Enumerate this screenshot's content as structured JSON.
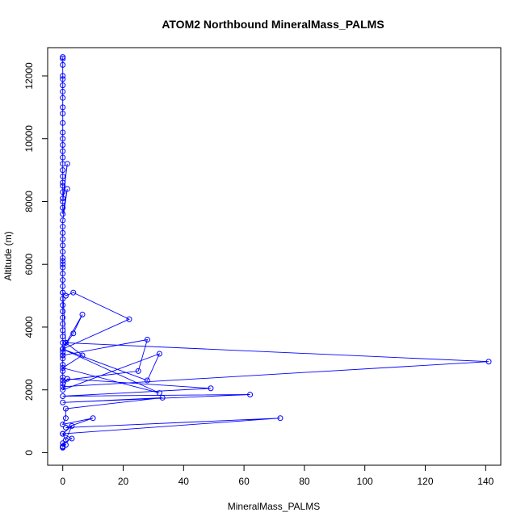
{
  "chart_data": {
    "type": "line",
    "title": "ATOM2 Northbound MineralMass_PALMS",
    "xlabel": "MineralMass_PALMS",
    "ylabel": "Altitude (m)",
    "xlim": [
      -5,
      145
    ],
    "ylim": [
      -400,
      12900
    ],
    "xticks": [
      0,
      20,
      40,
      60,
      80,
      100,
      120,
      140
    ],
    "yticks": [
      0,
      2000,
      4000,
      6000,
      8000,
      10000,
      12000
    ],
    "color": "#0000ff",
    "marker": "open-circle",
    "series": [
      {
        "x": [
          0,
          0,
          0,
          0,
          0,
          0,
          0,
          0,
          0,
          0,
          0,
          0,
          0,
          0,
          0,
          0,
          0,
          0,
          0,
          0,
          0,
          0,
          0,
          1.5,
          0,
          0,
          0,
          1.5,
          0,
          0,
          0,
          0,
          0,
          0,
          0,
          0,
          0,
          0,
          0,
          0,
          0,
          0,
          0,
          0,
          0,
          0,
          0,
          0,
          0,
          0,
          0,
          0,
          0,
          0,
          0,
          0,
          0,
          0,
          141,
          1,
          0,
          1,
          3.5,
          22,
          0,
          6.5,
          3.5,
          0,
          0,
          28,
          25,
          0,
          0,
          1,
          6.5,
          0,
          32,
          0,
          28,
          32,
          0,
          1.5,
          49,
          0,
          62,
          0,
          33,
          1,
          1,
          0,
          10,
          1,
          72,
          0,
          3,
          1,
          0,
          3,
          0,
          1,
          0,
          0,
          0
        ],
        "y": [
          12600,
          12550,
          12350,
          12000,
          11900,
          11700,
          11500,
          11300,
          11000,
          10800,
          10500,
          10200,
          10000,
          9800,
          9600,
          9400,
          9200,
          9000,
          8800,
          8600,
          8500,
          8300,
          8100,
          9200,
          8000,
          7800,
          7600,
          8400,
          7400,
          7200,
          7000,
          6800,
          6600,
          6400,
          6200,
          6000,
          6100,
          5900,
          5700,
          5500,
          5300,
          5100,
          4900,
          4700,
          4500,
          4300,
          4100,
          3900,
          3700,
          3500,
          3300,
          3100,
          3000,
          2800,
          2600,
          2400,
          2200,
          2100,
          2900,
          3500,
          5100,
          5000,
          5100,
          4250,
          3300,
          4400,
          3800,
          3300,
          3100,
          3600,
          2600,
          2300,
          3200,
          3500,
          3100,
          2700,
          1900,
          3300,
          2300,
          3150,
          2000,
          2350,
          2050,
          1800,
          1850,
          1600,
          1750,
          1400,
          1100,
          900,
          1100,
          800,
          1100,
          600,
          850,
          400,
          600,
          450,
          300,
          250,
          200,
          180,
          160
        ]
      }
    ]
  }
}
